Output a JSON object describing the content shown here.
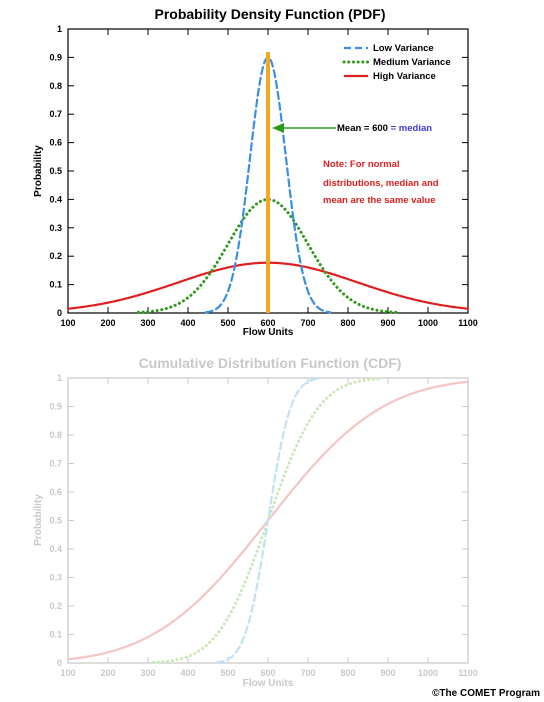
{
  "chart_data": [
    {
      "type": "line",
      "title": "Probability Density Function (PDF)",
      "xlabel": "Flow Units",
      "ylabel": "Probability",
      "xlim": [
        100,
        1100
      ],
      "ylim": [
        0,
        1
      ],
      "x_ticks": [
        "100",
        "200",
        "300",
        "400",
        "500",
        "600",
        "700",
        "800",
        "900",
        "1000",
        "1100"
      ],
      "y_ticks": [
        "0",
        "0.1",
        "0.2",
        "0.3",
        "0.4",
        "0.5",
        "0.6",
        "0.7",
        "0.8",
        "0.9",
        "1"
      ],
      "grid": false,
      "legend_position": "top-right",
      "series": [
        {
          "name": "Low Variance",
          "color": "#3a8ee6",
          "style": "dashed",
          "mean": 600,
          "peak": 0.9,
          "sd": 45
        },
        {
          "name": "Medium Variance",
          "color": "#2e9a1a",
          "style": "dotted",
          "mean": 600,
          "peak": 0.4,
          "sd": 100
        },
        {
          "name": "High Variance",
          "color": "#e02020",
          "style": "solid",
          "mean": 600,
          "peak": 0.177,
          "sd": 225
        }
      ],
      "mean_line": {
        "x": 600,
        "color": "#f5a623"
      },
      "annotations": {
        "mean_prefix": "Mean = 600",
        "mean_suffix": "= median",
        "note_lines": [
          "Note: For normal",
          "distributions, median and",
          "mean are the same value"
        ]
      }
    },
    {
      "type": "line",
      "title": "Cumulative Distribution Function (CDF)",
      "xlabel": "Flow Units",
      "ylabel": "Probability",
      "xlim": [
        100,
        1100
      ],
      "ylim": [
        0,
        1
      ],
      "x_ticks": [
        "100",
        "200",
        "300",
        "400",
        "500",
        "600",
        "700",
        "800",
        "900",
        "1000",
        "1100"
      ],
      "y_ticks": [
        "0",
        "0.1",
        "0.2",
        "0.3",
        "0.4",
        "0.5",
        "0.6",
        "0.7",
        "0.8",
        "0.9",
        "1"
      ],
      "grid": false,
      "faded": true,
      "series": [
        {
          "color": "#bfe3f5",
          "style": "dashed",
          "mean": 600,
          "sd": 45
        },
        {
          "color": "#c9e8b8",
          "style": "dotted",
          "mean": 600,
          "sd": 100
        },
        {
          "color": "#f7c4c4",
          "style": "solid",
          "mean": 600,
          "sd": 225
        }
      ]
    }
  ],
  "credit": "©The COMET Program"
}
